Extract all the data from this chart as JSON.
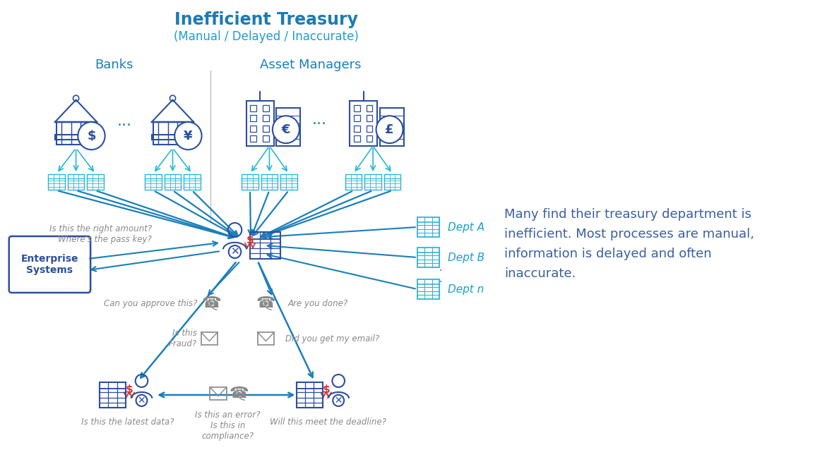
{
  "title": "Inefficient Treasury",
  "subtitle": "(Manual / Delayed / Inaccurate)",
  "title_color": "#1c7bb5",
  "subtitle_color": "#1c9fcc",
  "title_fontsize": 17,
  "subtitle_fontsize": 12,
  "body_text_lines": [
    "Many find their treasury department is",
    "inefficient. Most processes are manual,",
    "information is delayed and often",
    "inaccurate."
  ],
  "body_text_color": "#3a5fa0",
  "body_text_fontsize": 13,
  "background_color": "#ffffff",
  "arrow_color_dark": "#1a7fbb",
  "arrow_color_light": "#2ab5d8",
  "icon_color": "#2b4fa0",
  "icon_color_light": "#2ab5d8",
  "red_color": "#e03030",
  "label_color": "#888888",
  "dept_label_color": "#1a9fcc",
  "enterprise_box_color": "#2b4fa0",
  "divider_color": "#c0c0c0",
  "banks_label": "Banks",
  "asset_managers_label": "Asset Managers",
  "dept_labels": [
    "Dept A",
    "Dept B",
    "Dept n"
  ],
  "enterprise_label": "Enterprise\nSystems",
  "q_right_amount": "Is this the right amount?\nWhere's the pass key?",
  "q_approve": "Can you approve this?",
  "q_fraud": "Is this\nFraud?",
  "q_done": "Are you done?",
  "q_email": "Did you get my email?",
  "q_latest": "Is this the latest data?",
  "q_error": "Is this an error?\nIs this in\ncompliance?",
  "q_deadline": "Will this meet the deadline?"
}
